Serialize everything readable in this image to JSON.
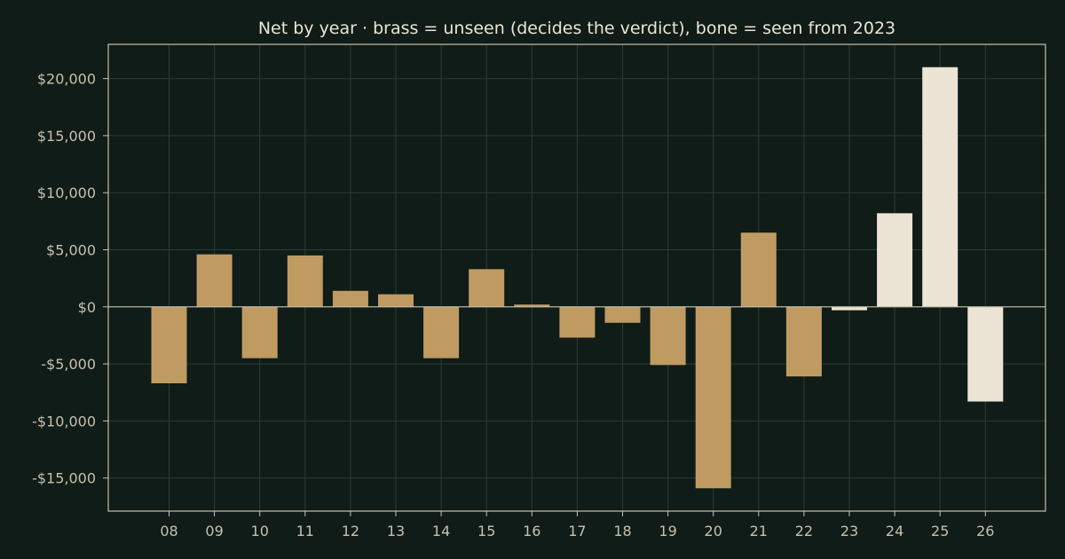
{
  "chart_data": {
    "type": "bar",
    "title": "Net by year  ·  brass = unseen (decides the verdict), bone = seen from 2023",
    "xlabel": "",
    "ylabel": "",
    "categories": [
      "08",
      "09",
      "10",
      "11",
      "12",
      "13",
      "14",
      "15",
      "16",
      "17",
      "18",
      "19",
      "20",
      "21",
      "22",
      "23",
      "24",
      "25",
      "26"
    ],
    "values": [
      -6700,
      4600,
      -4500,
      4500,
      1400,
      1100,
      -4500,
      3300,
      200,
      -2700,
      -1400,
      -5100,
      -15900,
      6500,
      -6100,
      -300,
      8200,
      21000,
      -8300
    ],
    "groups": [
      "unseen",
      "unseen",
      "unseen",
      "unseen",
      "unseen",
      "unseen",
      "unseen",
      "unseen",
      "unseen",
      "unseen",
      "unseen",
      "unseen",
      "unseen",
      "unseen",
      "unseen",
      "seen",
      "seen",
      "seen",
      "seen"
    ],
    "colors": {
      "unseen": "#bf9b62",
      "seen": "#ece4d4"
    },
    "ylim": [
      -17900,
      23000
    ],
    "yticks": [
      20000,
      15000,
      10000,
      5000,
      0,
      -5000,
      -10000,
      -15000
    ],
    "ytick_labels": [
      "$20,000",
      "$15,000",
      "$10,000",
      "$5,000",
      "$0",
      "-$5,000",
      "-$10,000",
      "-$15,000"
    ],
    "grid": true,
    "legend": "none"
  }
}
